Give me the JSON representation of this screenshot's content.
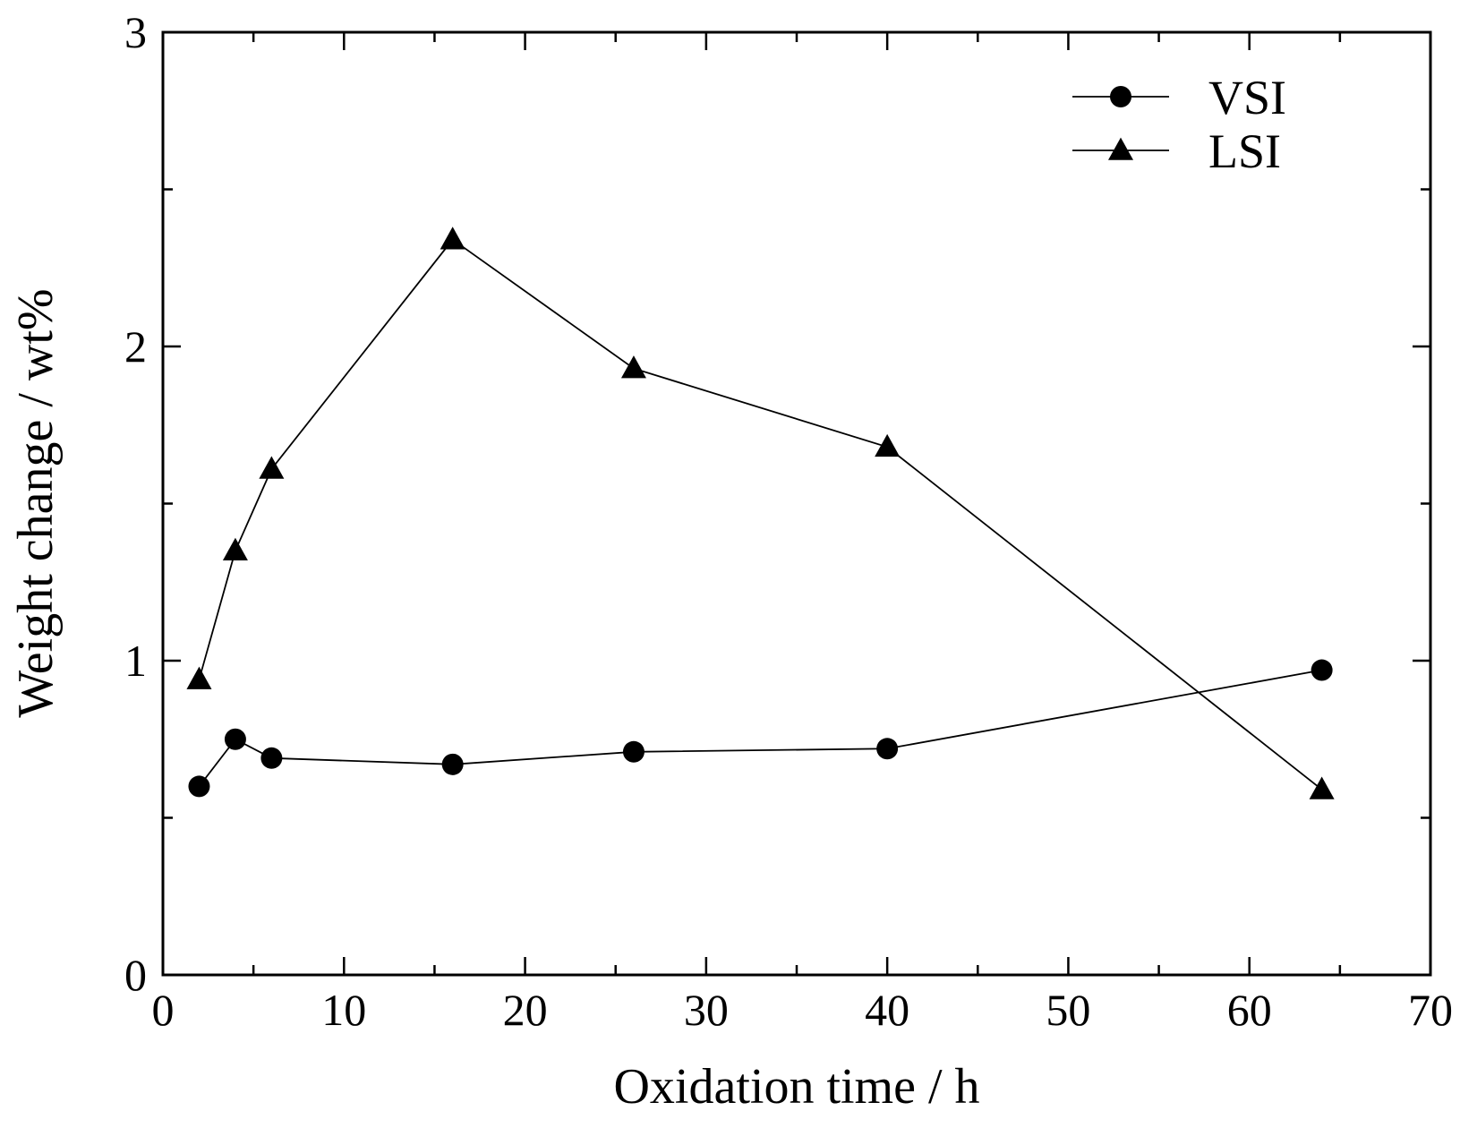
{
  "chart_data": {
    "type": "line",
    "title": "",
    "xlabel": "Oxidation time / h",
    "ylabel": "Weight change / wt%",
    "xlim": [
      0,
      70
    ],
    "ylim": [
      0,
      3
    ],
    "x_ticks": [
      0,
      10,
      20,
      30,
      40,
      50,
      60,
      70
    ],
    "x_tick_labels": [
      "0",
      "10",
      "20",
      "30",
      "40",
      "50",
      "60",
      "70"
    ],
    "y_ticks": [
      0,
      1,
      2,
      3
    ],
    "y_tick_labels": [
      "0",
      "1",
      "2",
      "3"
    ],
    "grid": false,
    "legend_position": "top-right",
    "series": [
      {
        "name": "VSI",
        "marker": "circle",
        "color": "#000000",
        "x": [
          2,
          4,
          6,
          16,
          26,
          40,
          64
        ],
        "y": [
          0.6,
          0.75,
          0.69,
          0.67,
          0.71,
          0.72,
          0.97
        ]
      },
      {
        "name": "LSI",
        "marker": "triangle",
        "color": "#000000",
        "x": [
          2,
          4,
          6,
          16,
          26,
          40,
          64
        ],
        "y": [
          0.94,
          1.35,
          1.61,
          2.34,
          1.93,
          1.68,
          0.59
        ]
      }
    ]
  }
}
